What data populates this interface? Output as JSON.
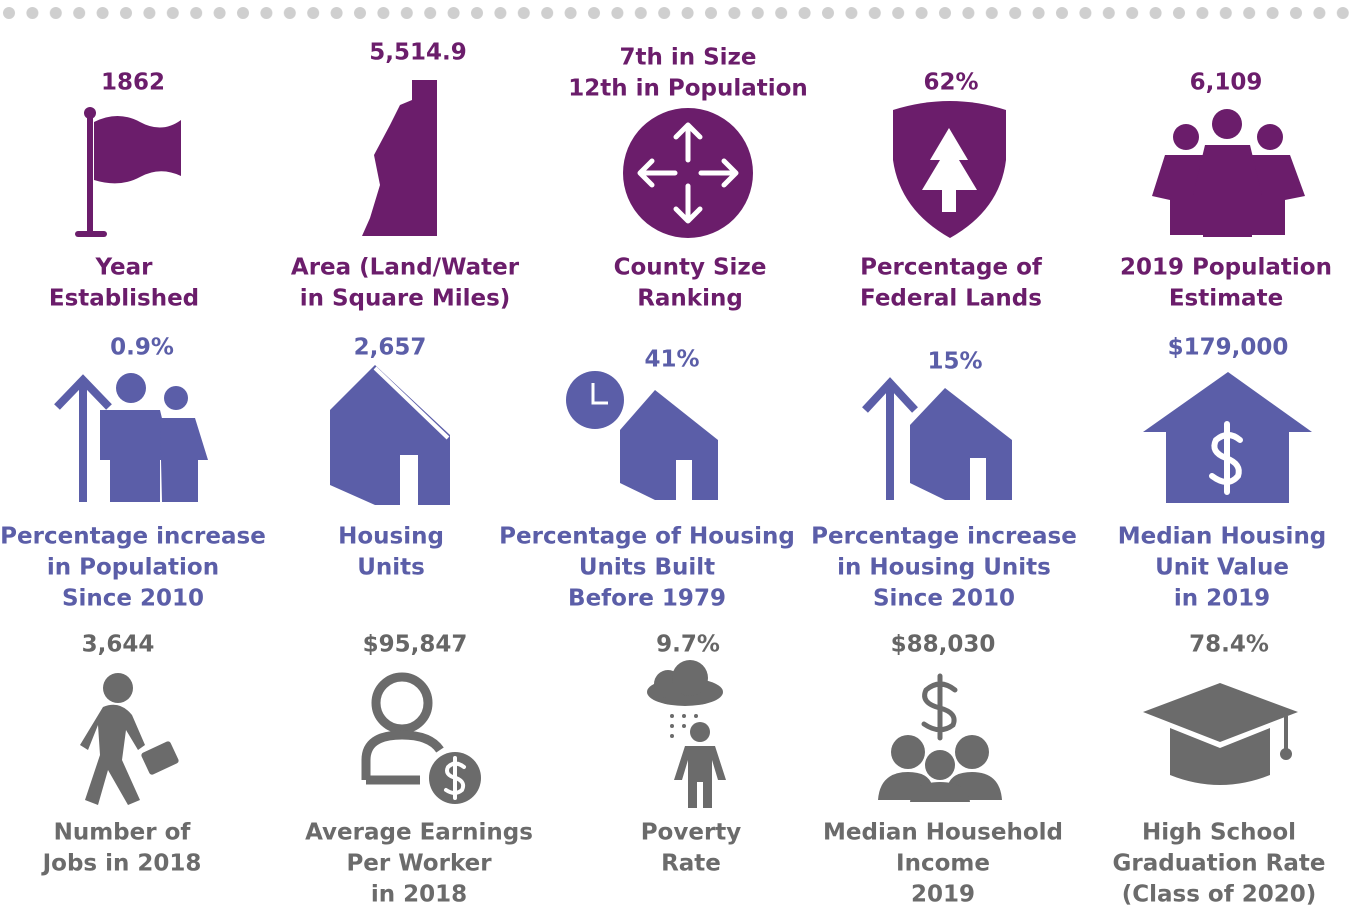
{
  "rows": [
    {
      "items": [
        {
          "value": [
            "1862"
          ],
          "label": [
            "Year",
            "Established"
          ]
        },
        {
          "value": [
            "5,514.9"
          ],
          "label": [
            "Area (Land/Water",
            "in Square Miles)"
          ]
        },
        {
          "value": [
            "7th in Size",
            "12th in Population"
          ],
          "label": [
            "County Size",
            "Ranking"
          ]
        },
        {
          "value": [
            "62%"
          ],
          "label": [
            "Percentage of",
            "Federal Lands"
          ]
        },
        {
          "value": [
            "6,109"
          ],
          "label": [
            "2019 Population",
            "Estimate"
          ]
        }
      ]
    },
    {
      "items": [
        {
          "value": [
            "0.9%"
          ],
          "label": [
            "Percentage increase",
            "in Population",
            "Since 2010"
          ]
        },
        {
          "value": [
            "2,657"
          ],
          "label": [
            "Housing",
            "Units"
          ]
        },
        {
          "value": [
            "41%"
          ],
          "label": [
            "Percentage of Housing",
            "Units Built",
            "Before 1979"
          ]
        },
        {
          "value": [
            "15%"
          ],
          "label": [
            "Percentage increase",
            "in Housing Units",
            "Since 2010"
          ]
        },
        {
          "value": [
            "$179,000"
          ],
          "label": [
            "Median Housing",
            "Unit Value",
            "in 2019"
          ]
        }
      ]
    },
    {
      "items": [
        {
          "value": [
            "3,644"
          ],
          "label": [
            "Number of",
            "Jobs in 2018"
          ]
        },
        {
          "value": [
            "$95,847"
          ],
          "label": [
            "Average Earnings",
            "Per Worker",
            "in 2018"
          ]
        },
        {
          "value": [
            "9.7%"
          ],
          "label": [
            "Poverty",
            "Rate"
          ]
        },
        {
          "value": [
            "$88,030"
          ],
          "label": [
            "Median Household",
            "Income",
            "2019"
          ]
        },
        {
          "value": [
            "78.4%"
          ],
          "label": [
            "High School",
            "Graduation Rate",
            "(Class of 2020)"
          ]
        }
      ]
    }
  ]
}
